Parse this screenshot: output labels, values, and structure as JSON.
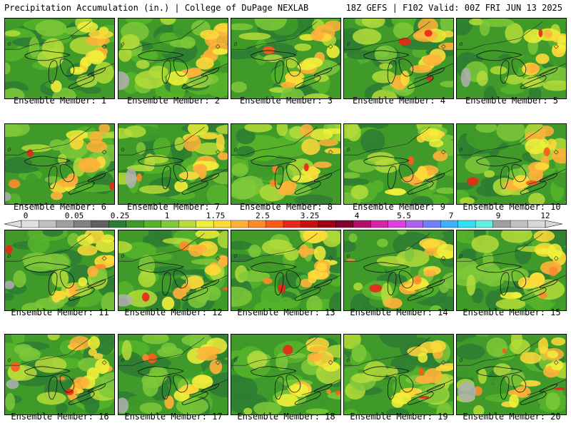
{
  "header": {
    "left": "Precipitation Accumulation (in.) | College of DuPage NEXLAB",
    "right": "18Z GEFS | F102 Valid: 00Z FRI JUN 13 2025"
  },
  "members": [
    {
      "label": "Ensemble Member: 1"
    },
    {
      "label": "Ensemble Member: 2"
    },
    {
      "label": "Ensemble Member: 3"
    },
    {
      "label": "Ensemble Member: 4"
    },
    {
      "label": "Ensemble Member: 5"
    },
    {
      "label": "Ensemble Member: 6"
    },
    {
      "label": "Ensemble Member: 7"
    },
    {
      "label": "Ensemble Member: 8"
    },
    {
      "label": "Ensemble Member: 9"
    },
    {
      "label": "Ensemble Member: 10"
    },
    {
      "label": "Ensemble Member: 11"
    },
    {
      "label": "Ensemble Member: 12"
    },
    {
      "label": "Ensemble Member: 13"
    },
    {
      "label": "Ensemble Member: 14"
    },
    {
      "label": "Ensemble Member: 15"
    },
    {
      "label": "Ensemble Member: 16"
    },
    {
      "label": "Ensemble Member: 17"
    },
    {
      "label": "Ensemble Member: 18"
    },
    {
      "label": "Ensemble Member: 19"
    },
    {
      "label": "Ensemble Member: 20"
    }
  ],
  "colorbar": {
    "labels": [
      "0",
      "0.05",
      "0.25",
      "1",
      "1.75",
      "2.5",
      "3.25",
      "4",
      "5.5",
      "7",
      "9",
      "12"
    ],
    "colors": [
      "#e0e0e0",
      "#c0c0c0",
      "#a0a0a0",
      "#808080",
      "#606060",
      "#2e7d32",
      "#3f9a2a",
      "#55b32a",
      "#7ec83a",
      "#b5dc3a",
      "#f0f03a",
      "#ffd93a",
      "#ffb13a",
      "#ff8a2a",
      "#ff5a1a",
      "#e8281a",
      "#c81010",
      "#a00010",
      "#800030",
      "#b0106a",
      "#d820a8",
      "#e040e0",
      "#b060f0",
      "#7080f8",
      "#40b0f8",
      "#30e0f0",
      "#60f0e0",
      "#a0a0a0",
      "#c0c0c0",
      "#d8d8d8"
    ]
  }
}
